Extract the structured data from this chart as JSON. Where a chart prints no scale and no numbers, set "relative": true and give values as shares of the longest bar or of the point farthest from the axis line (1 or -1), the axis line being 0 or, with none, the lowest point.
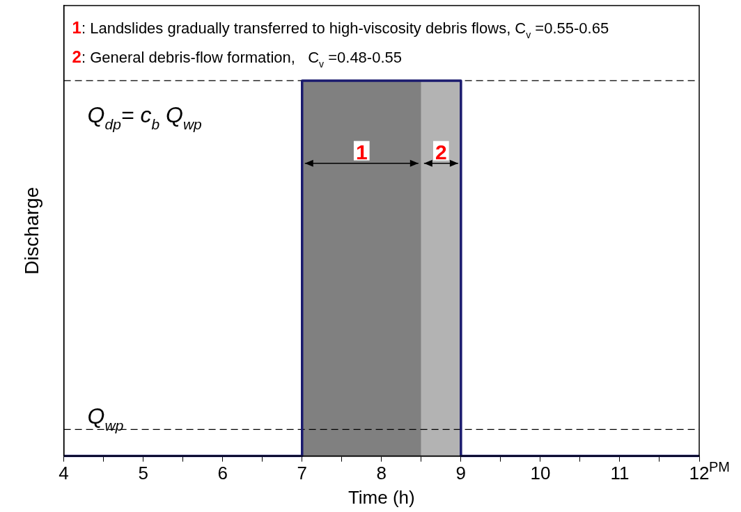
{
  "chart_data": {
    "type": "step",
    "relative": true,
    "xlabel": "Time (h)",
    "ylabel": "Discharge",
    "x": [
      4,
      7,
      9,
      12
    ],
    "series": [
      {
        "color": "#1a1a6e",
        "values": [
          0,
          1,
          0,
          0
        ]
      }
    ],
    "xlim": [
      4,
      12
    ],
    "xticks": [
      4,
      {
        "value": 4.5,
        "label": null
      },
      5,
      {
        "value": 5.5,
        "label": null
      },
      6,
      {
        "value": 6.5,
        "label": null
      },
      7,
      {
        "value": 7.5,
        "label": null
      },
      8,
      {
        "value": 8.5,
        "label": null
      },
      9,
      {
        "value": 9.5,
        "label": null
      },
      10,
      {
        "value": 10.5,
        "label": null
      },
      11,
      {
        "value": 11.5,
        "label": null
      },
      12
    ],
    "bands": [
      {
        "axis": "x",
        "from": 7,
        "to": 8.5,
        "label": "1",
        "color": "#808080"
      },
      {
        "axis": "x",
        "from": 8.5,
        "to": 9,
        "label": "2",
        "color": "#b3b3b3"
      }
    ],
    "ref_lines": [
      {
        "axis": "y",
        "value": 1,
        "label": "Q$_{dp}$= c$_{b}$ Q$_{wp}$",
        "color": "#000000",
        "line_style": "dashed"
      },
      {
        "axis": "y",
        "value": 0.071,
        "label": "Q$_{wp}$",
        "color": "#000000",
        "line_style": "dashed"
      }
    ],
    "annotations": [
      "1: Landslides gradually transferred to high-viscosity debris flows, C$_{v}$ =0.55-0.65",
      "2: General debris-flow formation,   C$_{v}$ =0.48-0.55",
      "PM"
    ],
    "grid": false,
    "legend": false,
    "line_style": "solid",
    "marker": "none"
  }
}
